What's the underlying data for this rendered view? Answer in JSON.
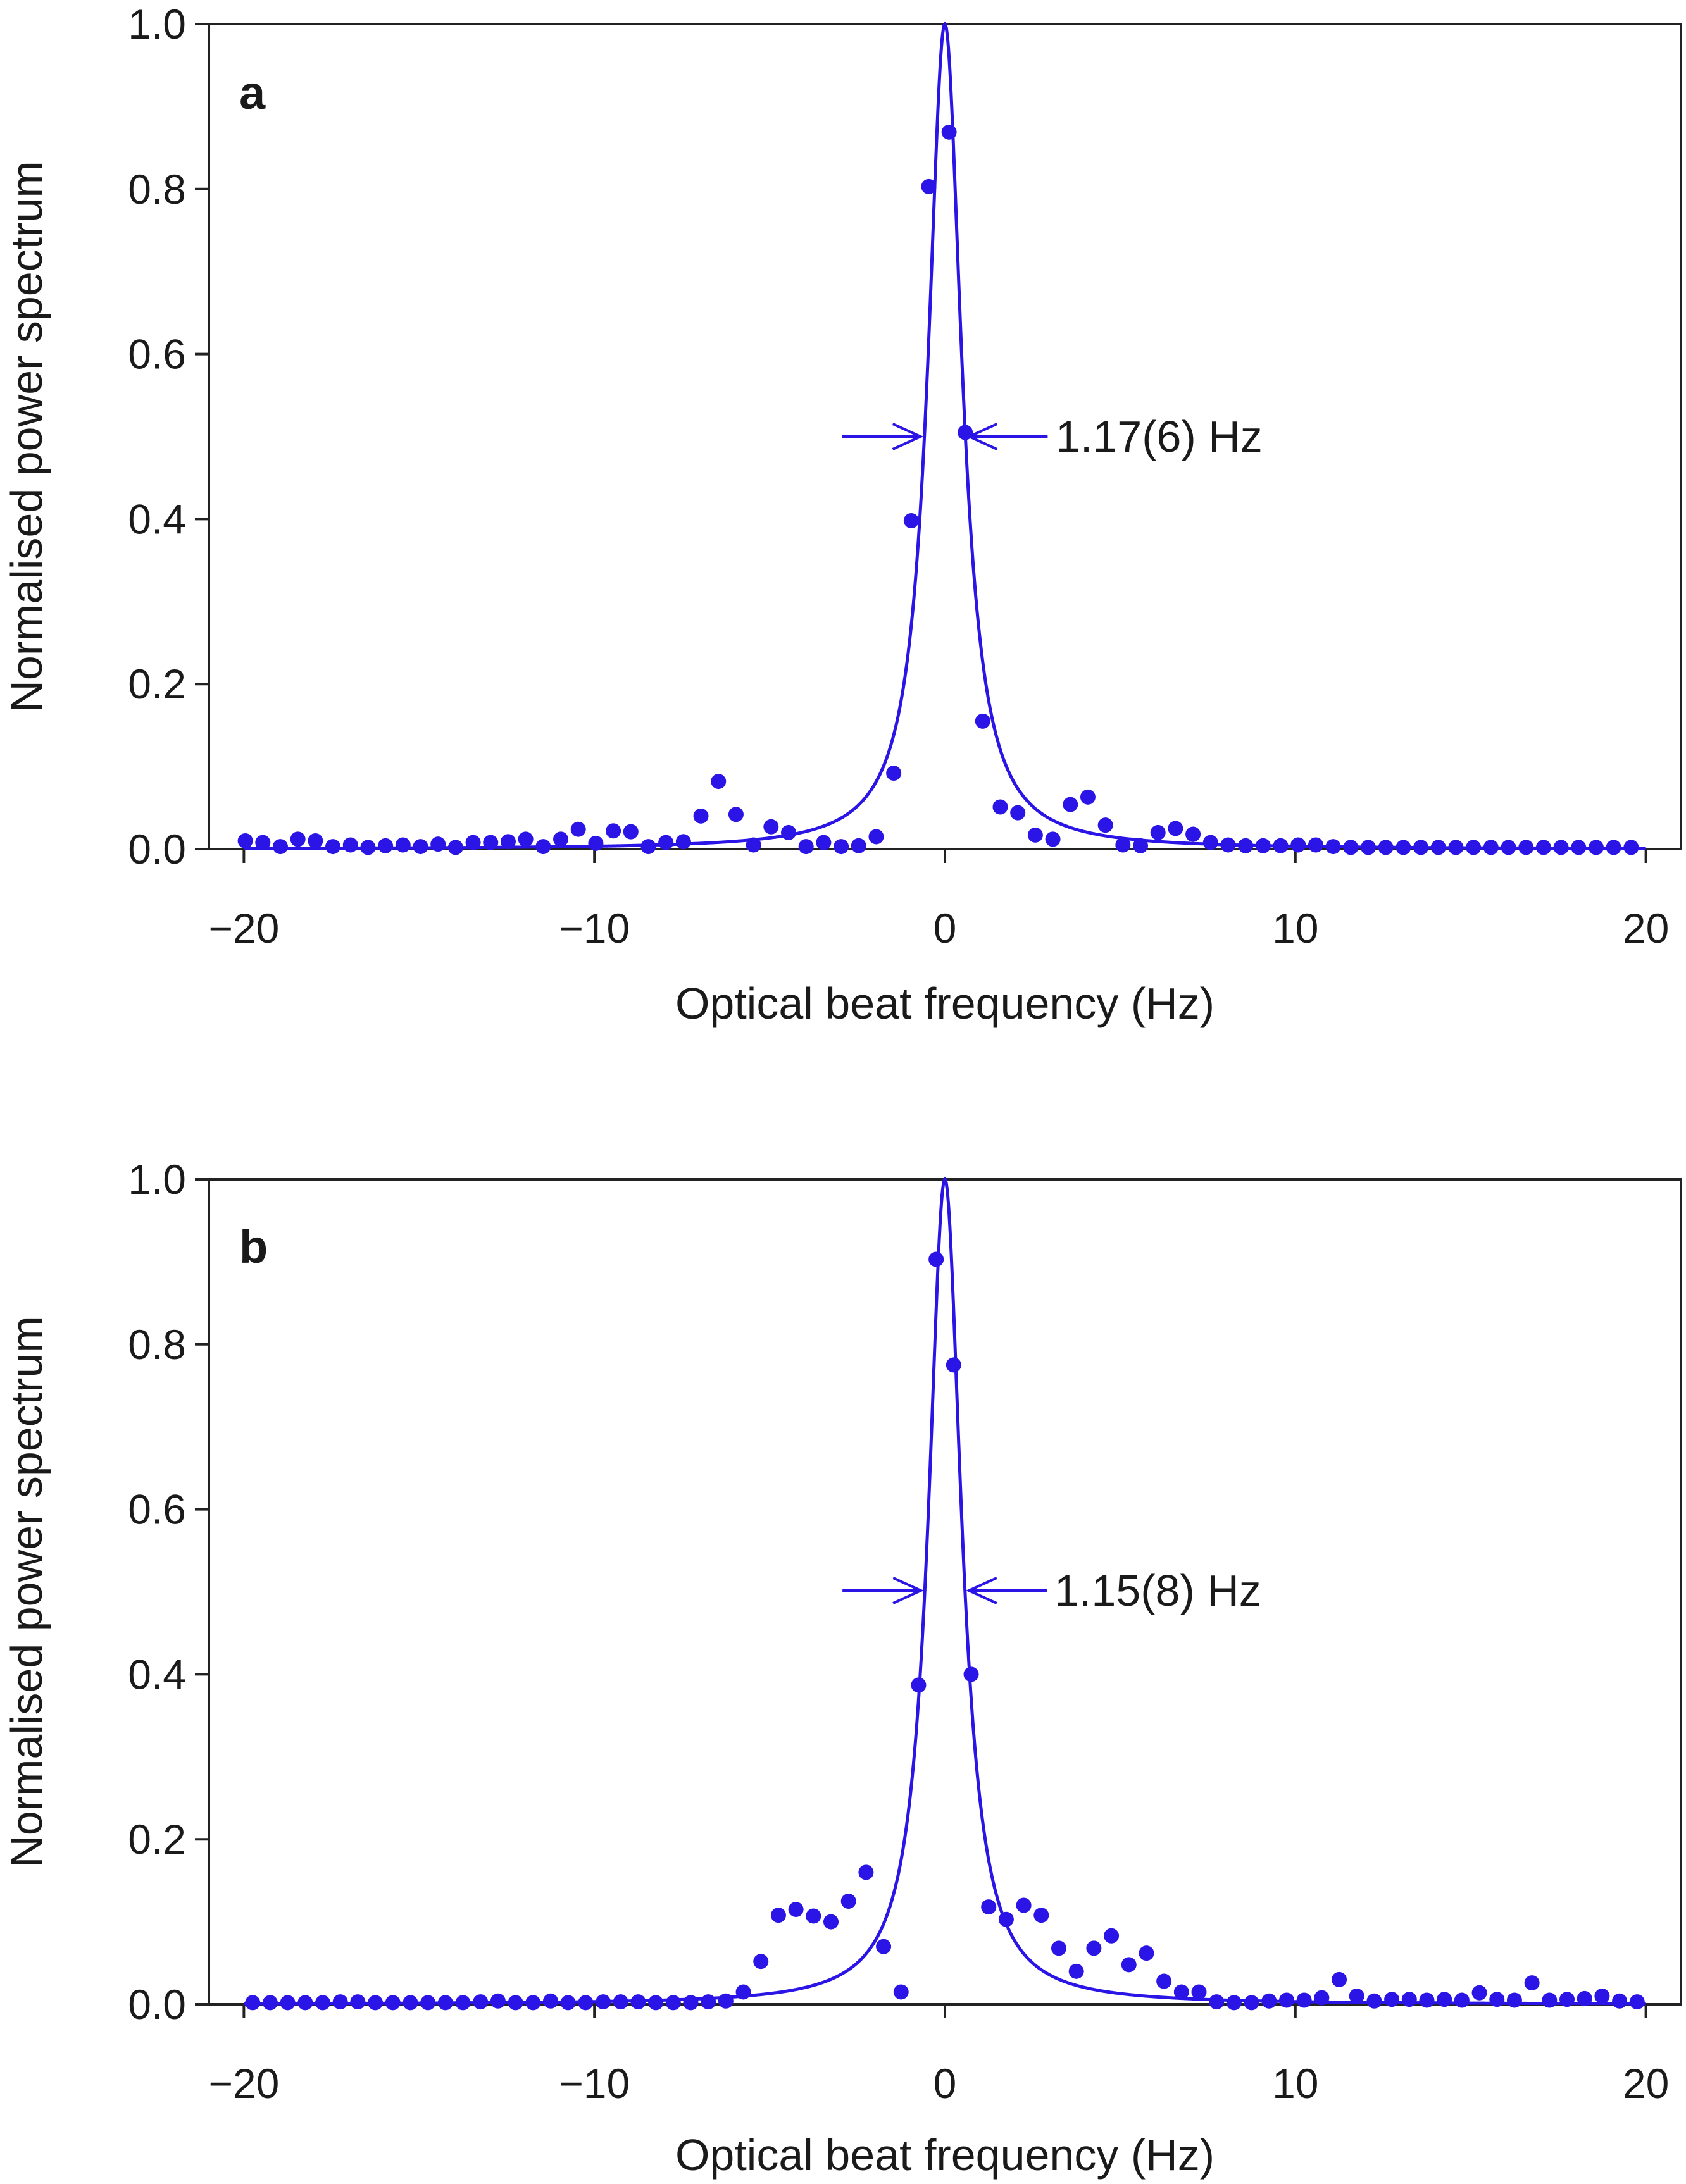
{
  "colors": {
    "series": "#2a14e6",
    "axis": "#222222",
    "text": "#1a1a1a"
  },
  "chart_data": [
    {
      "panel": "a",
      "type": "scatter",
      "xlabel": "Optical beat frequency (Hz)",
      "ylabel": "Normalised power spectrum",
      "xlim": [
        -21,
        21
      ],
      "ylim": [
        0,
        1.0
      ],
      "xticks": [
        -20,
        -10,
        0,
        10,
        20
      ],
      "xtick_labels": [
        "−20",
        "−10",
        "0",
        "10",
        "20"
      ],
      "yticks": [
        0,
        0.2,
        0.4,
        0.6,
        0.8,
        1.0
      ],
      "ytick_labels": [
        "0.0",
        "0.2",
        "0.4",
        "0.6",
        "0.8",
        "1.0"
      ],
      "annotation": "1.17(6) Hz",
      "fit": {
        "type": "lorentzian",
        "center": 0,
        "fwhm": 1.17,
        "peak": 1.0
      },
      "points": {
        "x": [
          -19.96,
          -19.46,
          -18.96,
          -18.46,
          -17.96,
          -17.46,
          -16.96,
          -16.46,
          -15.96,
          -15.46,
          -14.96,
          -14.46,
          -13.96,
          -13.46,
          -12.96,
          -12.46,
          -11.96,
          -11.46,
          -10.96,
          -10.46,
          -9.96,
          -9.46,
          -8.96,
          -8.46,
          -7.96,
          -7.46,
          -6.96,
          -6.46,
          -5.96,
          -5.46,
          -4.96,
          -4.46,
          -3.96,
          -3.46,
          -2.96,
          -2.46,
          -1.96,
          -1.46,
          -0.96,
          -0.46,
          0.12,
          0.58,
          1.08,
          1.58,
          2.08,
          2.58,
          3.08,
          3.58,
          4.08,
          4.58,
          5.08,
          5.58,
          6.08,
          6.58,
          7.08,
          7.58,
          8.08,
          8.58,
          9.08,
          9.58,
          10.08,
          10.58,
          11.08,
          11.58,
          12.08,
          12.58,
          13.08,
          13.58,
          14.08,
          14.58,
          15.08,
          15.58,
          16.08,
          16.58,
          17.08,
          17.58,
          18.08,
          18.58,
          19.08,
          19.58
        ],
        "y": [
          0.01,
          0.008,
          0.003,
          0.012,
          0.01,
          0.003,
          0.005,
          0.002,
          0.004,
          0.005,
          0.003,
          0.006,
          0.002,
          0.008,
          0.008,
          0.009,
          0.012,
          0.003,
          0.012,
          0.024,
          0.007,
          0.022,
          0.021,
          0.003,
          0.008,
          0.009,
          0.04,
          0.082,
          0.042,
          0.005,
          0.027,
          0.02,
          0.003,
          0.008,
          0.003,
          0.004,
          0.015,
          0.092,
          0.398,
          0.803,
          0.869,
          0.505,
          0.155,
          0.051,
          0.044,
          0.017,
          0.012,
          0.054,
          0.063,
          0.029,
          0.005,
          0.004,
          0.02,
          0.025,
          0.018,
          0.008,
          0.005,
          0.004,
          0.004,
          0.004,
          0.005,
          0.005,
          0.003,
          0.002,
          0.002,
          0.002,
          0.002,
          0.002,
          0.002,
          0.002,
          0.002,
          0.002,
          0.002,
          0.002,
          0.002,
          0.002,
          0.002,
          0.002,
          0.002,
          0.002
        ]
      }
    },
    {
      "panel": "b",
      "type": "scatter",
      "xlabel": "Optical beat frequency (Hz)",
      "ylabel": "Normalised power spectrum",
      "xlim": [
        -21,
        21
      ],
      "ylim": [
        0,
        1.0
      ],
      "xticks": [
        -20,
        -10,
        0,
        10,
        20
      ],
      "xtick_labels": [
        "−20",
        "−10",
        "0",
        "10",
        "20"
      ],
      "yticks": [
        0,
        0.2,
        0.4,
        0.6,
        0.8,
        1.0
      ],
      "ytick_labels": [
        "0.0",
        "0.2",
        "0.4",
        "0.6",
        "0.8",
        "1.0"
      ],
      "annotation": "1.15(8) Hz",
      "fit": {
        "type": "lorentzian",
        "center": 0,
        "fwhm": 1.15,
        "peak": 1.0
      },
      "points": {
        "x": [
          -19.75,
          -19.25,
          -18.75,
          -18.25,
          -17.75,
          -17.25,
          -16.75,
          -16.25,
          -15.75,
          -15.25,
          -14.75,
          -14.25,
          -13.75,
          -13.25,
          -12.75,
          -12.25,
          -11.75,
          -11.25,
          -10.75,
          -10.25,
          -9.75,
          -9.25,
          -8.75,
          -8.25,
          -7.75,
          -7.25,
          -6.75,
          -6.25,
          -5.75,
          -5.25,
          -4.75,
          -4.25,
          -3.75,
          -3.25,
          -2.75,
          -2.25,
          -1.75,
          -1.25,
          -0.75,
          -0.25,
          0.25,
          0.75,
          1.25,
          1.75,
          2.25,
          2.75,
          3.25,
          3.75,
          4.25,
          4.75,
          5.25,
          5.75,
          6.25,
          6.75,
          7.25,
          7.75,
          8.25,
          8.75,
          9.25,
          9.75,
          10.25,
          10.75,
          11.25,
          11.75,
          12.25,
          12.75,
          13.25,
          13.75,
          14.25,
          14.75,
          15.25,
          15.75,
          16.25,
          16.75,
          17.25,
          17.75,
          18.25,
          18.75,
          19.25,
          19.75
        ],
        "y": [
          0.002,
          0.002,
          0.002,
          0.002,
          0.002,
          0.003,
          0.003,
          0.002,
          0.002,
          0.002,
          0.002,
          0.002,
          0.002,
          0.003,
          0.004,
          0.002,
          0.002,
          0.004,
          0.002,
          0.002,
          0.003,
          0.003,
          0.003,
          0.002,
          0.002,
          0.002,
          0.003,
          0.004,
          0.015,
          0.052,
          0.108,
          0.115,
          0.107,
          0.1,
          0.125,
          0.16,
          0.07,
          0.015,
          0.387,
          0.903,
          0.775,
          0.4,
          0.118,
          0.103,
          0.12,
          0.108,
          0.068,
          0.04,
          0.068,
          0.083,
          0.048,
          0.062,
          0.028,
          0.015,
          0.015,
          0.003,
          0.002,
          0.002,
          0.004,
          0.005,
          0.005,
          0.008,
          0.03,
          0.01,
          0.004,
          0.006,
          0.006,
          0.005,
          0.006,
          0.005,
          0.014,
          0.006,
          0.005,
          0.026,
          0.005,
          0.006,
          0.007,
          0.01,
          0.004,
          0.003
        ]
      }
    }
  ]
}
